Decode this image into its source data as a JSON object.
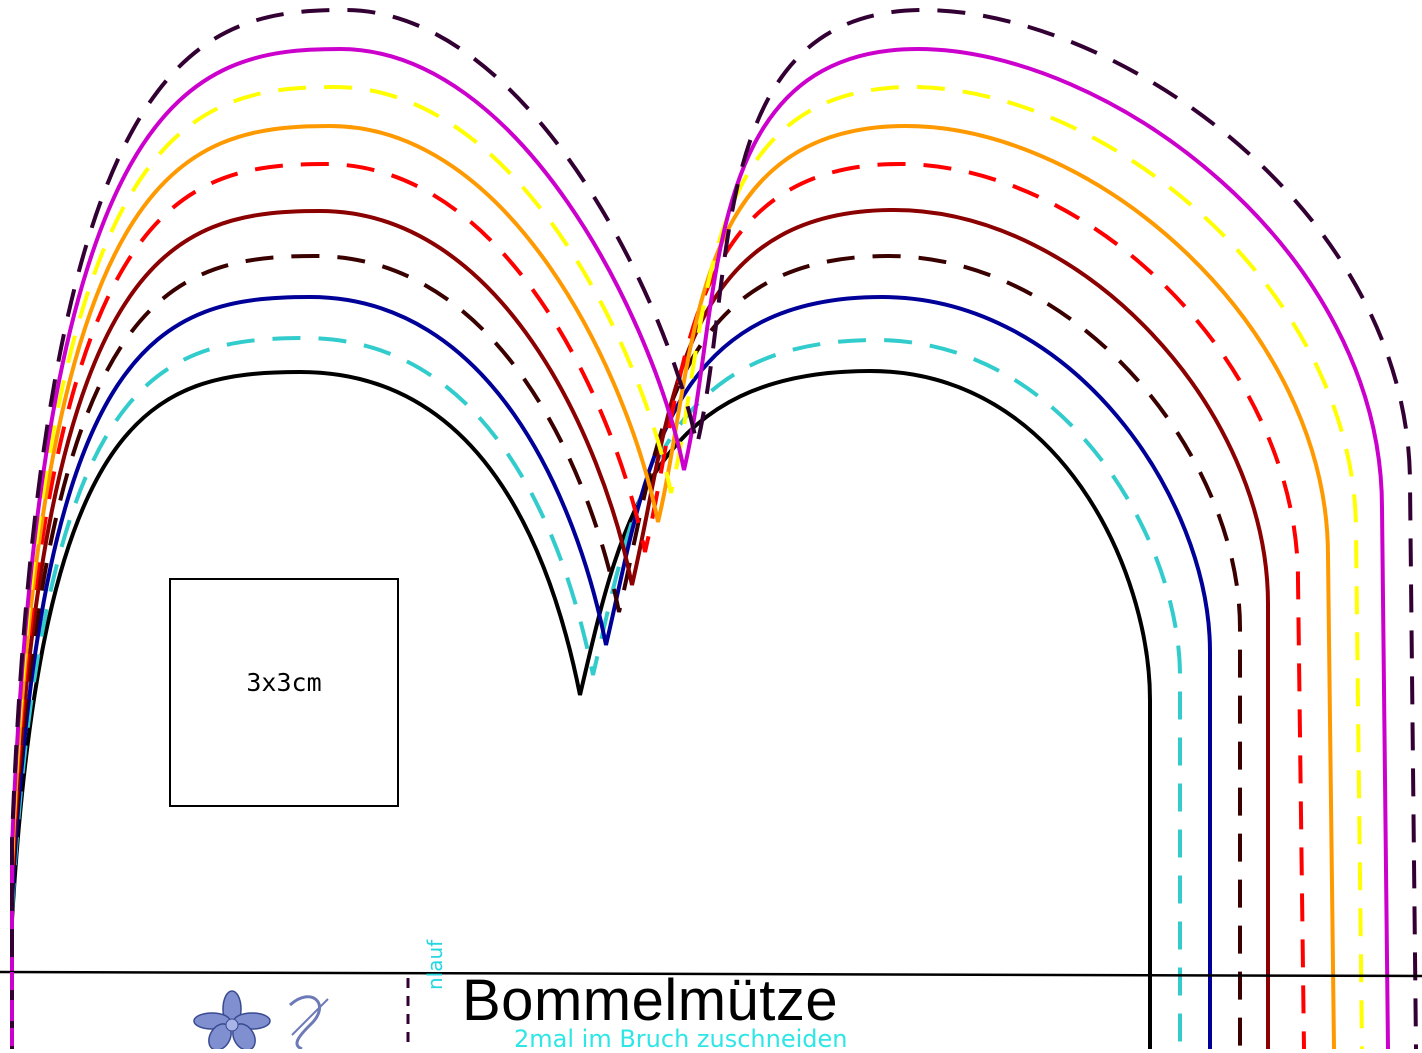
{
  "pattern": {
    "title": "Bommelmütze",
    "subtitle": "2mal im Bruch zuschneiden",
    "side_label": "nlauf",
    "square_label": "3x3cm",
    "logo": "flower-logo"
  },
  "size_lines": [
    {
      "color": "#000000",
      "style": "solid"
    },
    {
      "color": "#33cccc",
      "style": "dashed"
    },
    {
      "color": "#000099",
      "style": "solid"
    },
    {
      "color": "#3a0000",
      "style": "dashed"
    },
    {
      "color": "#8b0000",
      "style": "solid"
    },
    {
      "color": "#ff0000",
      "style": "dashed"
    },
    {
      "color": "#ff9900",
      "style": "solid"
    },
    {
      "color": "#ffff00",
      "style": "dashed"
    },
    {
      "color": "#cc00cc",
      "style": "solid"
    },
    {
      "color": "#330033",
      "style": "dashed"
    }
  ]
}
